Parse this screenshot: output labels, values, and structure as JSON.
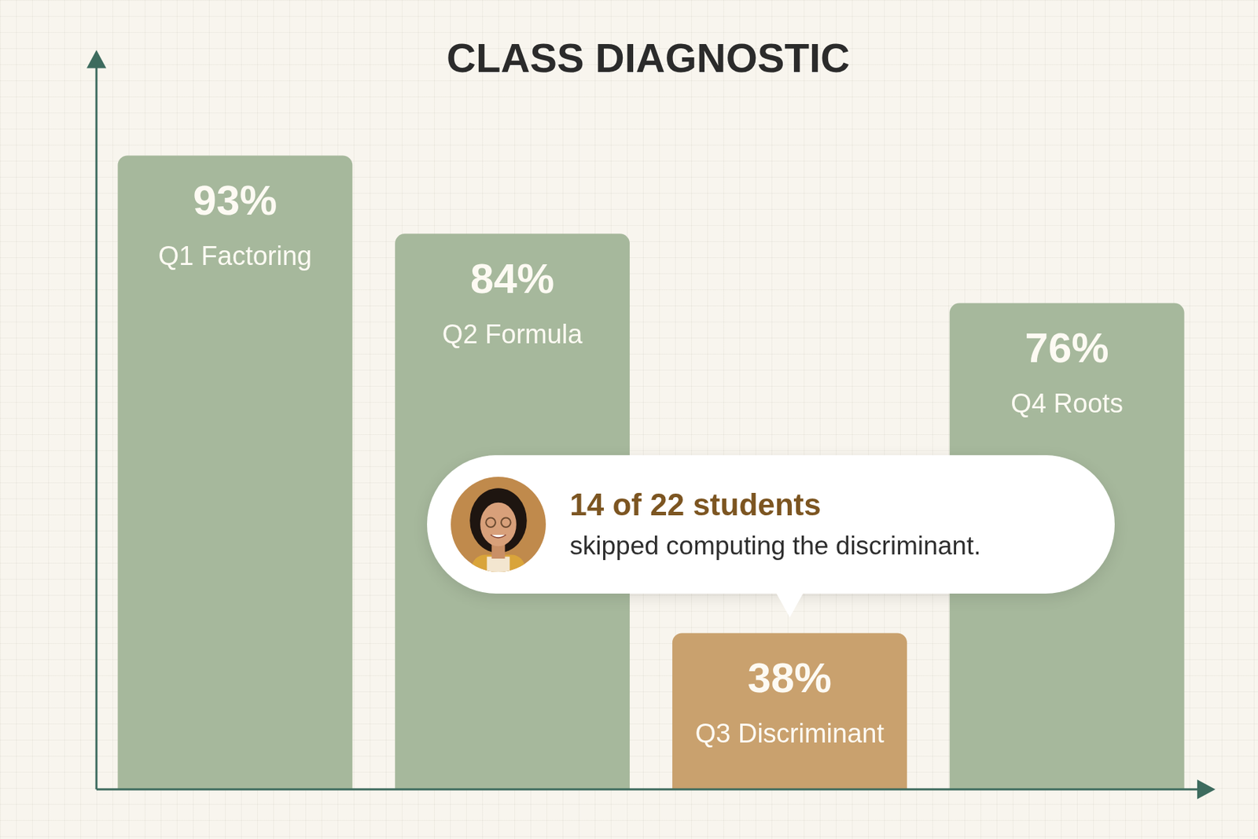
{
  "chart_data": {
    "type": "bar",
    "title": "CLASS DIAGNOSTIC",
    "categories": [
      "Q1 Factoring",
      "Q2 Formula",
      "Q3 Discriminant",
      "Q4 Roots"
    ],
    "values": [
      93,
      84,
      38,
      76
    ],
    "value_labels": [
      "93%",
      "84%",
      "38%",
      "76%"
    ],
    "colors": [
      "#a6b89c",
      "#a6b89c",
      "#c9a16e",
      "#a6b89c"
    ],
    "ylim": [
      20,
      100
    ],
    "grid": false,
    "data_labels": true,
    "tick_labels": false,
    "annotation": {
      "headline": "14 of 22 students",
      "text": "skipped computing the discriminant.",
      "category": "Q3 Discriminant"
    }
  }
}
